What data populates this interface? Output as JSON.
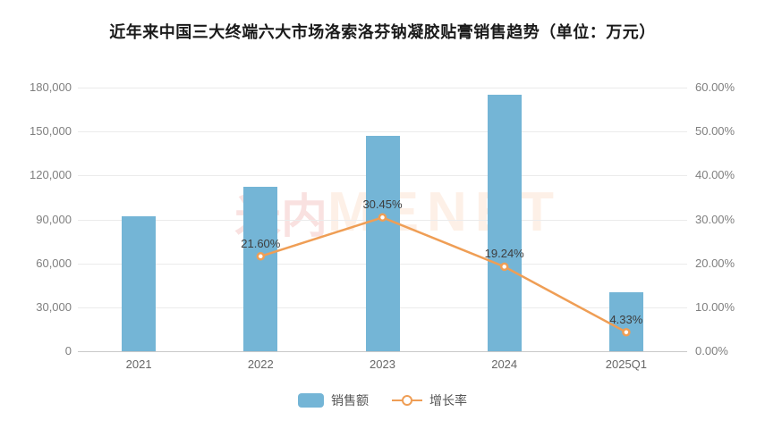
{
  "chart_data": {
    "type": "bar",
    "combo": "bar+line dual-axis",
    "title": "近年来中国三大终端六大市场洛索洛芬钠凝胶贴膏销售趋势（单位：万元）",
    "categories": [
      "2021",
      "2022",
      "2023",
      "2024",
      "2025Q1"
    ],
    "series": [
      {
        "name": "销售额",
        "type": "bar",
        "yaxis": "left",
        "values": [
          92000,
          112000,
          147000,
          175000,
          40000
        ],
        "color": "#74b5d6"
      },
      {
        "name": "增长率",
        "type": "line",
        "yaxis": "right",
        "values": [
          null,
          21.6,
          30.45,
          19.24,
          4.33
        ],
        "point_labels": [
          null,
          "21.60%",
          "30.45%",
          "19.24%",
          "4.33%"
        ],
        "color": "#ef9e55"
      }
    ],
    "left_axis": {
      "min": 0,
      "max": 180000,
      "step": 30000,
      "tick_labels": [
        "0",
        "30,000",
        "60,000",
        "90,000",
        "120,000",
        "150,000",
        "180,000"
      ]
    },
    "right_axis": {
      "min": 0,
      "max": 60,
      "step": 10,
      "tick_labels": [
        "0.00%",
        "10.00%",
        "20.00%",
        "30.00%",
        "40.00%",
        "50.00%",
        "60.00%"
      ]
    },
    "grid": true,
    "legend_position": "bottom"
  },
  "legend": {
    "items": [
      {
        "label": "销售额",
        "symbol": "bar-swatch"
      },
      {
        "label": "增长率",
        "symbol": "line-marker"
      }
    ]
  },
  "watermark": {
    "cn": "米内",
    "en": "MENET"
  },
  "colors": {
    "bar": "#74b5d6",
    "line": "#ef9e55",
    "grid": "#ebebeb",
    "axis_line": "#c9c9c9",
    "axis_text": "#7f7f7f",
    "point_label_text": "#3d3d3d",
    "title_text": "#1a1a1a",
    "legend_text": "#555555",
    "background": "#ffffff"
  }
}
